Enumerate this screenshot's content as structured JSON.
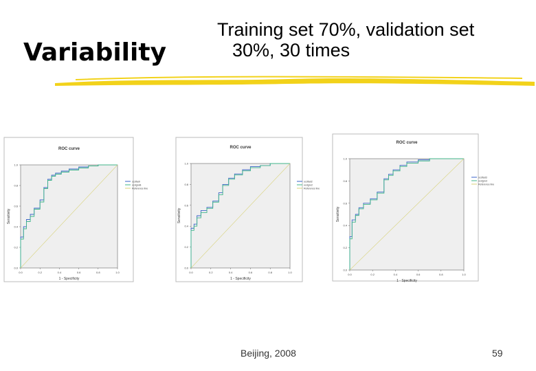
{
  "slide": {
    "title": "Variability",
    "subtitle_line1": "Training set 70%, validation set",
    "subtitle_line2": "30%, 30 times",
    "footer": "Beijing, 2008",
    "page_number": "59"
  },
  "colors": {
    "rule": "#f2d21a",
    "plot_bg": "#efefef",
    "curve_a": "#3a63c8",
    "curve_b": "#3fb58a",
    "reference": "#d8d27a"
  },
  "chart_data": [
    {
      "type": "line",
      "title": "ROC curve",
      "xlabel": "1 - Specificity",
      "ylabel": "Sensitivity",
      "xlim": [
        0,
        1
      ],
      "ylim": [
        0,
        1
      ],
      "x_ticks": [
        "0.0",
        "0.2",
        "0.4",
        "0.6",
        "0.8",
        "1.0"
      ],
      "y_ticks": [
        "0.0",
        "0.2",
        "0.4",
        "0.6",
        "0.8",
        "1.0"
      ],
      "legend_position": "right",
      "legend": [
        "ocdfadl",
        "ocdgroB",
        "Reference line"
      ],
      "series": [
        {
          "name": "ocdfadl",
          "x": [
            0,
            0,
            0.03,
            0.06,
            0.1,
            0.14,
            0.2,
            0.24,
            0.28,
            0.32,
            0.36,
            0.42,
            0.5,
            0.6,
            0.7,
            0.8,
            0.9,
            1
          ],
          "y": [
            0,
            0.1,
            0.3,
            0.4,
            0.47,
            0.52,
            0.58,
            0.66,
            0.78,
            0.86,
            0.9,
            0.92,
            0.94,
            0.96,
            0.98,
            0.99,
            1,
            1
          ]
        },
        {
          "name": "ocdgroB",
          "x": [
            0,
            0,
            0.03,
            0.06,
            0.1,
            0.14,
            0.2,
            0.24,
            0.28,
            0.32,
            0.36,
            0.42,
            0.5,
            0.6,
            0.7,
            0.8,
            0.9,
            1
          ],
          "y": [
            0,
            0.08,
            0.28,
            0.38,
            0.45,
            0.5,
            0.57,
            0.64,
            0.77,
            0.85,
            0.89,
            0.91,
            0.93,
            0.95,
            0.97,
            0.99,
            1,
            1
          ]
        },
        {
          "name": "Reference line",
          "x": [
            0,
            1
          ],
          "y": [
            0,
            1
          ]
        }
      ]
    },
    {
      "type": "line",
      "title": "ROC curve",
      "xlabel": "1 - Specificity",
      "ylabel": "Sensitivity",
      "xlim": [
        0,
        1
      ],
      "ylim": [
        0,
        1
      ],
      "x_ticks": [
        "0.0",
        "0.2",
        "0.4",
        "0.6",
        "0.8",
        "1.0"
      ],
      "y_ticks": [
        "0.0",
        "0.2",
        "0.4",
        "0.6",
        "0.8",
        "1.0"
      ],
      "legend_position": "right",
      "legend": [
        "ocdfad2",
        "ocdgro2",
        "Reference line"
      ],
      "series": [
        {
          "name": "ocdfad2",
          "x": [
            0,
            0,
            0.03,
            0.06,
            0.1,
            0.16,
            0.22,
            0.28,
            0.32,
            0.38,
            0.44,
            0.52,
            0.6,
            0.7,
            0.8,
            0.9,
            1
          ],
          "y": [
            0,
            0.2,
            0.38,
            0.42,
            0.5,
            0.55,
            0.58,
            0.64,
            0.72,
            0.8,
            0.86,
            0.9,
            0.94,
            0.97,
            0.98,
            1,
            1
          ]
        },
        {
          "name": "ocdgro2",
          "x": [
            0,
            0,
            0.03,
            0.06,
            0.1,
            0.16,
            0.22,
            0.28,
            0.32,
            0.38,
            0.44,
            0.52,
            0.6,
            0.7,
            0.8,
            0.9,
            1
          ],
          "y": [
            0,
            0.18,
            0.36,
            0.4,
            0.48,
            0.53,
            0.57,
            0.63,
            0.7,
            0.79,
            0.85,
            0.89,
            0.93,
            0.96,
            0.98,
            1,
            1
          ]
        },
        {
          "name": "Reference line",
          "x": [
            0,
            1
          ],
          "y": [
            0,
            1
          ]
        }
      ]
    },
    {
      "type": "line",
      "title": "ROC curve",
      "xlabel": "1 - Specificity",
      "ylabel": "Sensitivity",
      "xlim": [
        0,
        1
      ],
      "ylim": [
        0,
        1
      ],
      "x_ticks": [
        "0.0",
        "0.2",
        "0.4",
        "0.6",
        "0.8",
        "1.0"
      ],
      "y_ticks": [
        "0.0",
        "0.2",
        "0.4",
        "0.6",
        "0.8",
        "1.0"
      ],
      "legend_position": "right",
      "legend": [
        "ocdfad3",
        "ocdgro3",
        "Reference line"
      ],
      "series": [
        {
          "name": "ocdfad3",
          "x": [
            0,
            0,
            0.02,
            0.05,
            0.08,
            0.12,
            0.18,
            0.24,
            0.3,
            0.34,
            0.38,
            0.44,
            0.5,
            0.6,
            0.7,
            0.85,
            1
          ],
          "y": [
            0,
            0.12,
            0.3,
            0.45,
            0.5,
            0.56,
            0.6,
            0.64,
            0.7,
            0.82,
            0.86,
            0.9,
            0.94,
            0.97,
            0.99,
            1,
            1
          ]
        },
        {
          "name": "ocdgro3",
          "x": [
            0,
            0,
            0.02,
            0.05,
            0.08,
            0.12,
            0.18,
            0.24,
            0.3,
            0.34,
            0.38,
            0.44,
            0.5,
            0.6,
            0.7,
            0.85,
            1
          ],
          "y": [
            0,
            0.1,
            0.28,
            0.43,
            0.49,
            0.55,
            0.59,
            0.63,
            0.69,
            0.81,
            0.85,
            0.89,
            0.93,
            0.96,
            0.98,
            1,
            1
          ]
        },
        {
          "name": "Reference line",
          "x": [
            0,
            1
          ],
          "y": [
            0,
            1
          ]
        }
      ]
    }
  ]
}
